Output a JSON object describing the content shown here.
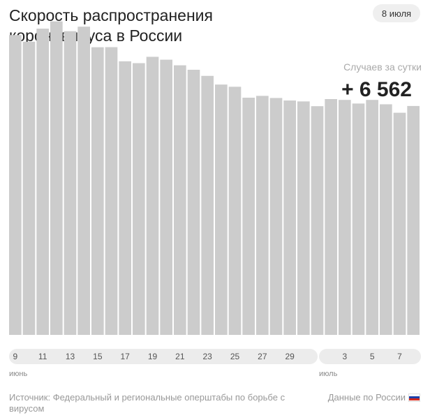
{
  "header": {
    "title": "Скорость распространения коронавируса в России",
    "date": "8 июля"
  },
  "headline": {
    "label": "Случаев за сутки",
    "value": "+ 6 562"
  },
  "colors": {
    "bar": "#cccccc",
    "axis_band": "#ececec",
    "flag": [
      "#ffffff",
      "#1c3fa8",
      "#d52b1e"
    ]
  },
  "chart_data": {
    "type": "bar",
    "ylabel": "Случаев за сутки",
    "x_tick_labels": [
      "9",
      "11",
      "13",
      "15",
      "17",
      "19",
      "21",
      "23",
      "25",
      "27",
      "29",
      "3",
      "5",
      "7"
    ],
    "months": [
      "июнь",
      "июль"
    ],
    "categories": [
      "9 июня",
      "10 июня",
      "11 июня",
      "12 июня",
      "13 июня",
      "14 июня",
      "15 июня",
      "16 июня",
      "17 июня",
      "18 июня",
      "19 июня",
      "20 июня",
      "21 июня",
      "22 июня",
      "23 июня",
      "24 июня",
      "25 июня",
      "26 июня",
      "27 июня",
      "28 июня",
      "29 июня",
      "30 июня",
      "1 июля",
      "2 июля",
      "3 июля",
      "4 июля",
      "5 июля",
      "6 июля",
      "7 июля",
      "8 июля"
    ],
    "values": [
      8595,
      8404,
      8779,
      8987,
      8706,
      8835,
      8246,
      8248,
      7843,
      7790,
      7972,
      7889,
      7728,
      7600,
      7425,
      7176,
      7113,
      6800,
      6852,
      6791,
      6719,
      6693,
      6556,
      6760,
      6736,
      6632,
      6736,
      6611,
      6368,
      6562
    ],
    "ylim": [
      0,
      9000
    ]
  },
  "footer": {
    "source": "Источник: Федеральный и региональные оперштабы по борьбе с вирусом",
    "scope": "Данные по России"
  }
}
